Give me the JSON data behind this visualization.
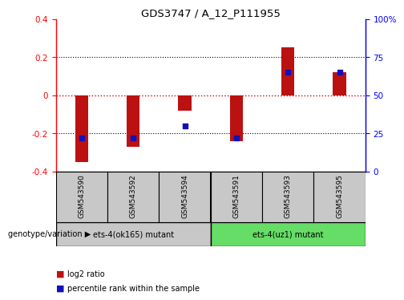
{
  "title": "GDS3747 / A_12_P111955",
  "samples": [
    "GSM543590",
    "GSM543592",
    "GSM543594",
    "GSM543591",
    "GSM543593",
    "GSM543595"
  ],
  "log2_ratio": [
    -0.35,
    -0.27,
    -0.08,
    -0.24,
    0.25,
    0.12
  ],
  "percentile_rank": [
    22,
    22,
    30,
    22,
    65,
    65
  ],
  "ylim_left": [
    -0.4,
    0.4
  ],
  "ylim_right": [
    0,
    100
  ],
  "bar_color": "#bb1111",
  "dot_color": "#1111bb",
  "zero_line_color": "#cc0000",
  "group1_label": "ets-4(ok165) mutant",
  "group2_label": "ets-4(uz1) mutant",
  "group1_color": "#c8c8c8",
  "group2_color": "#66dd66",
  "legend_red": "log2 ratio",
  "legend_blue": "percentile rank within the sample",
  "genotype_label": "genotype/variation"
}
